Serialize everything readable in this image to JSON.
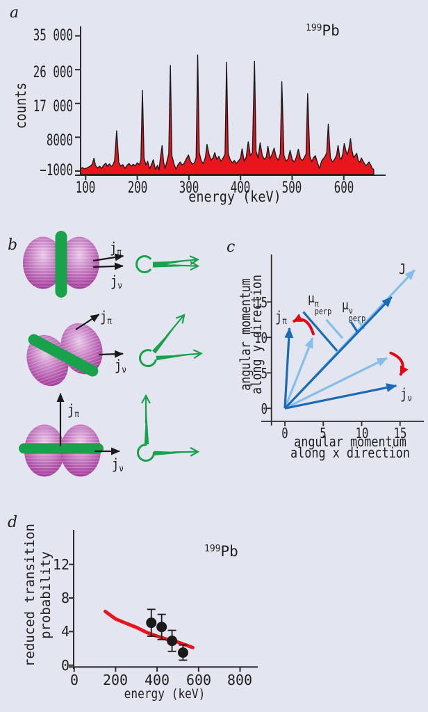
{
  "figure": {
    "background": "#e3e6f1",
    "panel_letters": {
      "a": "a",
      "b": "b",
      "c": "c",
      "d": "d"
    }
  },
  "colors": {
    "background": "#e3e6f1",
    "spectrum_fill": "#e8151d",
    "outline": "#1a1a1a",
    "axis": "#2b2b2b",
    "green": "#17a24b",
    "magenta_light": "#e9c9e9",
    "magenta_mid": "#c67fc2",
    "magenta_deep": "#8c2086",
    "blue_dark": "#1b6ab3",
    "blue_light": "#85bfe8",
    "red_arrow": "#e30613",
    "curve_red": "#e8151d"
  },
  "labels": {
    "isotope": {
      "sup": "199",
      "base": "Pb"
    },
    "jpi": {
      "base": "j",
      "sub": "π"
    },
    "jnu": {
      "base": "j",
      "sub": "ν"
    },
    "mu_pi": {
      "base": "μ",
      "sup": "π",
      "sub": "perp"
    },
    "mu_nu": {
      "base": "μ",
      "sup": "ν",
      "sub": "perp"
    },
    "J": "J"
  },
  "chart_data": [
    {
      "id": "gamma-spectrum",
      "panel": "a",
      "type": "area",
      "title_isotope": "199Pb",
      "xlabel": "energy (keV)",
      "ylabel": "counts",
      "xticks": [
        100,
        200,
        300,
        400,
        500,
        600
      ],
      "yticks": [
        35000,
        26000,
        17000,
        8000,
        -1000
      ],
      "ytick_labels": [
        "35 000",
        "26 000",
        "17 000",
        "8000",
        "−1000"
      ],
      "xlim": [
        90,
        670
      ],
      "ylim": [
        -1000,
        39000
      ],
      "grid": false,
      "main_peaks_keV": [
        160,
        210,
        264,
        317,
        373,
        427,
        480,
        530,
        570
      ],
      "points": [
        [
          90,
          -300
        ],
        [
          94,
          -100
        ],
        [
          98,
          -400
        ],
        [
          102,
          -200
        ],
        [
          106,
          100
        ],
        [
          110,
          400
        ],
        [
          113,
          900
        ],
        [
          116,
          2400
        ],
        [
          119,
          500
        ],
        [
          123,
          -200
        ],
        [
          127,
          300
        ],
        [
          131,
          -300
        ],
        [
          135,
          600
        ],
        [
          139,
          1100
        ],
        [
          142,
          300
        ],
        [
          146,
          900
        ],
        [
          150,
          200
        ],
        [
          153,
          700
        ],
        [
          156,
          1700
        ],
        [
          160,
          9700
        ],
        [
          164,
          1300
        ],
        [
          168,
          300
        ],
        [
          172,
          700
        ],
        [
          176,
          -300
        ],
        [
          180,
          500
        ],
        [
          184,
          1000
        ],
        [
          188,
          300
        ],
        [
          192,
          800
        ],
        [
          196,
          400
        ],
        [
          200,
          1200
        ],
        [
          204,
          700
        ],
        [
          207,
          2000
        ],
        [
          210,
          20500
        ],
        [
          213,
          2400
        ],
        [
          217,
          600
        ],
        [
          220,
          1600
        ],
        [
          224,
          -400
        ],
        [
          228,
          900
        ],
        [
          231,
          2000
        ],
        [
          235,
          -600
        ],
        [
          239,
          500
        ],
        [
          242,
          -700
        ],
        [
          245,
          2600
        ],
        [
          248,
          5800
        ],
        [
          251,
          1300
        ],
        [
          254,
          -300
        ],
        [
          258,
          1900
        ],
        [
          261,
          3600
        ],
        [
          264,
          27100
        ],
        [
          267,
          3100
        ],
        [
          271,
          900
        ],
        [
          275,
          -500
        ],
        [
          279,
          700
        ],
        [
          283,
          1400
        ],
        [
          287,
          600
        ],
        [
          291,
          1100
        ],
        [
          295,
          2300
        ],
        [
          299,
          3300
        ],
        [
          303,
          1600
        ],
        [
          307,
          800
        ],
        [
          311,
          1300
        ],
        [
          314,
          2600
        ],
        [
          317,
          29900
        ],
        [
          320,
          3900
        ],
        [
          324,
          1700
        ],
        [
          328,
          1000
        ],
        [
          332,
          2700
        ],
        [
          335,
          6100
        ],
        [
          339,
          3400
        ],
        [
          343,
          1900
        ],
        [
          347,
          2600
        ],
        [
          350,
          3900
        ],
        [
          354,
          2100
        ],
        [
          358,
          2900
        ],
        [
          362,
          1600
        ],
        [
          366,
          2400
        ],
        [
          370,
          3500
        ],
        [
          373,
          28000
        ],
        [
          376,
          3700
        ],
        [
          380,
          2000
        ],
        [
          384,
          1200
        ],
        [
          388,
          1800
        ],
        [
          392,
          1000
        ],
        [
          396,
          1700
        ],
        [
          400,
          2400
        ],
        [
          403,
          4900
        ],
        [
          407,
          1600
        ],
        [
          411,
          2700
        ],
        [
          415,
          6800
        ],
        [
          419,
          3100
        ],
        [
          423,
          3900
        ],
        [
          427,
          28200
        ],
        [
          430,
          4300
        ],
        [
          434,
          2500
        ],
        [
          438,
          6500
        ],
        [
          442,
          3200
        ],
        [
          446,
          2100
        ],
        [
          450,
          2800
        ],
        [
          453,
          5600
        ],
        [
          457,
          2300
        ],
        [
          461,
          3400
        ],
        [
          465,
          5100
        ],
        [
          469,
          2700
        ],
        [
          473,
          1900
        ],
        [
          477,
          3600
        ],
        [
          480,
          22800
        ],
        [
          484,
          3300
        ],
        [
          488,
          1600
        ],
        [
          492,
          2200
        ],
        [
          496,
          4500
        ],
        [
          500,
          2100
        ],
        [
          504,
          1400
        ],
        [
          508,
          2600
        ],
        [
          512,
          4800
        ],
        [
          516,
          2300
        ],
        [
          520,
          1800
        ],
        [
          524,
          2700
        ],
        [
          527,
          3600
        ],
        [
          530,
          19600
        ],
        [
          534,
          3000
        ],
        [
          538,
          1500
        ],
        [
          541,
          2500
        ],
        [
          545,
          3100
        ],
        [
          549,
          1200
        ],
        [
          553,
          -300
        ],
        [
          557,
          1700
        ],
        [
          561,
          2400
        ],
        [
          564,
          3000
        ],
        [
          567,
          3900
        ],
        [
          570,
          11500
        ],
        [
          574,
          2600
        ],
        [
          578,
          1400
        ],
        [
          582,
          2100
        ],
        [
          586,
          3200
        ],
        [
          589,
          5800
        ],
        [
          592,
          2700
        ],
        [
          595,
          2100
        ],
        [
          598,
          3500
        ],
        [
          601,
          6300
        ],
        [
          604,
          4400
        ],
        [
          607,
          3300
        ],
        [
          610,
          5000
        ],
        [
          613,
          7600
        ],
        [
          616,
          4300
        ],
        [
          619,
          2600
        ],
        [
          622,
          3100
        ],
        [
          625,
          3700
        ],
        [
          628,
          1800
        ],
        [
          631,
          1300
        ],
        [
          634,
          2500
        ],
        [
          637,
          1700
        ],
        [
          640,
          1000
        ],
        [
          643,
          400
        ],
        [
          646,
          900
        ],
        [
          649,
          1400
        ],
        [
          652,
          700
        ],
        [
          655,
          -300
        ],
        [
          658,
          -600
        ]
      ]
    },
    {
      "id": "shears-vector-diagram",
      "panel": "c",
      "type": "vector",
      "xlabel_lines": [
        "angular momentum",
        "along x direction"
      ],
      "ylabel_lines": [
        "angular momentum",
        "along y direction"
      ],
      "xticks": [
        0,
        5,
        10,
        15
      ],
      "yticks": [
        0,
        5,
        10,
        15
      ],
      "xlim": [
        0,
        18
      ],
      "ylim": [
        0,
        21
      ],
      "vectors": [
        {
          "name": "J-later",
          "shade": "light",
          "to": [
            16.9,
            19.5
          ]
        },
        {
          "name": "J-initial",
          "shade": "dark",
          "to": [
            13.9,
            15.7
          ]
        },
        {
          "name": "j-pi-initial",
          "shade": "light",
          "to": [
            3.6,
            9.9
          ]
        },
        {
          "name": "j-pi-later",
          "shade": "dark",
          "to": [
            0.6,
            11.3
          ]
        },
        {
          "name": "j-nu-initial",
          "shade": "light",
          "to": [
            13.3,
            7.1
          ]
        },
        {
          "name": "j-nu-later",
          "shade": "dark",
          "to": [
            14.5,
            3.2
          ]
        }
      ],
      "perp_segments": [
        {
          "name": "mu-perp-pi-dark",
          "shade": "dark",
          "from": [
            2.4,
            13.6
          ],
          "to": [
            6.8,
            8.1
          ]
        },
        {
          "name": "mu-perp-pi-light",
          "shade": "light",
          "from": [
            5.4,
            12.5
          ],
          "to": [
            7.5,
            9.9
          ]
        },
        {
          "name": "mu-perp-nu-dark",
          "shade": "dark",
          "from": [
            8.6,
            12.2
          ],
          "to": [
            9.5,
            10.7
          ]
        },
        {
          "name": "mu-perp-nu-light",
          "shade": "light",
          "from": [
            9.5,
            12.5
          ],
          "to": [
            10.3,
            11.2
          ]
        }
      ],
      "rotation_arrows": [
        {
          "name": "j-pi-rotation",
          "from": [
            3.7,
            10.5
          ],
          "ctrl": [
            2.9,
            13.2
          ],
          "to": [
            1.2,
            12.3
          ]
        },
        {
          "name": "j-nu-rotation",
          "from": [
            13.8,
            7.8
          ],
          "ctrl": [
            16.0,
            6.8
          ],
          "to": [
            15.1,
            4.8
          ]
        }
      ]
    },
    {
      "id": "reduced-transition-probability",
      "panel": "d",
      "type": "scatter-line",
      "title_isotope": "199Pb",
      "xlabel": "energy (keV)",
      "ylabel_lines": [
        "reduced transition",
        "probability"
      ],
      "xticks": [
        0,
        200,
        400,
        600,
        800
      ],
      "yticks": [
        0,
        4,
        8,
        12
      ],
      "xlim": [
        0,
        880
      ],
      "ylim": [
        0,
        14.5
      ],
      "curve": [
        [
          150,
          6.4
        ],
        [
          200,
          5.5
        ],
        [
          250,
          5.0
        ],
        [
          300,
          4.5
        ],
        [
          350,
          3.9
        ],
        [
          400,
          3.45
        ],
        [
          450,
          3.05
        ],
        [
          500,
          2.75
        ],
        [
          550,
          2.3
        ],
        [
          572,
          2.1
        ]
      ],
      "points": [
        {
          "x": 372,
          "y": 5.05,
          "err": 1.6
        },
        {
          "x": 422,
          "y": 4.55,
          "err": 1.5
        },
        {
          "x": 472,
          "y": 2.9,
          "err": 1.25
        },
        {
          "x": 525,
          "y": 1.5,
          "err": 0.9
        }
      ]
    }
  ],
  "panel_b": {
    "rows": [
      {
        "name": "shears-closed",
        "nucleus_band": "vertical",
        "nucleus_tilt_deg": 0,
        "band_tilt_deg": 90,
        "jpi_angle_deg": -9,
        "jnu_angle_deg": -2,
        "blade_angles_deg": [
          -5,
          2
        ]
      },
      {
        "name": "shears-opening",
        "nucleus_band": "tilted",
        "nucleus_tilt_deg": -19,
        "band_tilt_deg": 28,
        "jpi_angle_deg": -33,
        "jnu_angle_deg": -2,
        "blade_angles_deg": [
          -50,
          -5
        ]
      },
      {
        "name": "shears-open",
        "nucleus_band": "horizontal",
        "nucleus_tilt_deg": 0,
        "band_tilt_deg": 0,
        "jpi_angle_deg": -90,
        "jnu_angle_deg": 0,
        "blade_angles_deg": [
          -90,
          -1
        ]
      }
    ]
  }
}
